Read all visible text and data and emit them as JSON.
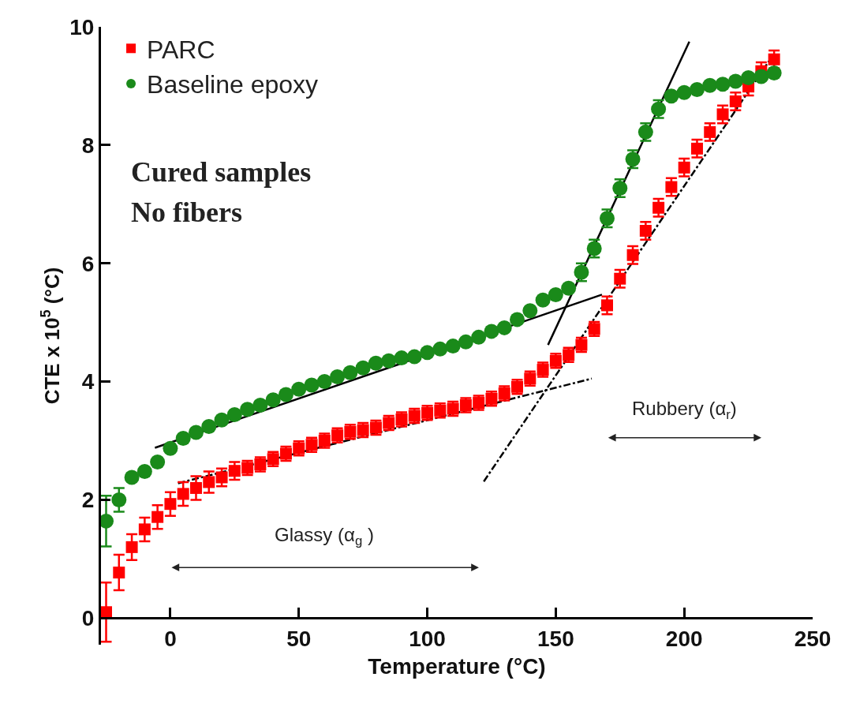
{
  "chart_data": {
    "type": "scatter",
    "xlabel": "Temperature (°C)",
    "ylabel": "CTE x 10$^{5}$ (°C)",
    "xlim": [
      -27,
      250
    ],
    "xticks": [
      0,
      50,
      100,
      150,
      200,
      250
    ],
    "ylim": [
      -0.45,
      10
    ],
    "yticks": [
      0,
      2,
      4,
      6,
      8,
      10
    ],
    "grid": false,
    "legend": "top left",
    "annotations": [
      "Cured samples",
      "No fibers",
      "Glassy (α$_{g}$ )",
      "Rubbery (α$_{r}$)"
    ],
    "series": [
      {
        "name": "PARC",
        "marker": "square",
        "color": "#ff0000",
        "x": [
          -25,
          -20,
          -15,
          -10,
          -5,
          0,
          5,
          10,
          15,
          20,
          25,
          30,
          35,
          40,
          45,
          50,
          55,
          60,
          65,
          70,
          75,
          80,
          85,
          90,
          95,
          100,
          105,
          110,
          115,
          120,
          125,
          130,
          135,
          140,
          145,
          150,
          155,
          160,
          165,
          170,
          175,
          180,
          185,
          190,
          195,
          200,
          205,
          210,
          215,
          220,
          225,
          230,
          235
        ],
        "values": [
          0.1,
          0.77,
          1.2,
          1.5,
          1.71,
          1.93,
          2.1,
          2.2,
          2.3,
          2.38,
          2.49,
          2.54,
          2.6,
          2.69,
          2.78,
          2.87,
          2.93,
          3.0,
          3.09,
          3.15,
          3.18,
          3.22,
          3.3,
          3.36,
          3.42,
          3.47,
          3.51,
          3.54,
          3.6,
          3.64,
          3.71,
          3.8,
          3.91,
          4.05,
          4.2,
          4.35,
          4.45,
          4.62,
          4.89,
          5.29,
          5.74,
          6.14,
          6.55,
          6.94,
          7.29,
          7.62,
          7.94,
          8.22,
          8.52,
          8.74,
          8.99,
          9.25,
          9.45
        ],
        "errors": [
          0.5,
          0.3,
          0.22,
          0.2,
          0.2,
          0.2,
          0.2,
          0.2,
          0.18,
          0.15,
          0.15,
          0.12,
          0.12,
          0.12,
          0.12,
          0.12,
          0.12,
          0.12,
          0.12,
          0.12,
          0.12,
          0.12,
          0.12,
          0.12,
          0.12,
          0.12,
          0.12,
          0.12,
          0.12,
          0.12,
          0.12,
          0.12,
          0.12,
          0.12,
          0.12,
          0.12,
          0.12,
          0.12,
          0.12,
          0.15,
          0.15,
          0.15,
          0.15,
          0.15,
          0.15,
          0.15,
          0.15,
          0.15,
          0.15,
          0.15,
          0.15,
          0.15,
          0.15
        ]
      },
      {
        "name": "Baseline epoxy",
        "marker": "circle",
        "color": "#1a8a1a",
        "x": [
          -25,
          -20,
          -15,
          -10,
          -5,
          0,
          5,
          10,
          15,
          20,
          25,
          30,
          35,
          40,
          45,
          50,
          55,
          60,
          65,
          70,
          75,
          80,
          85,
          90,
          95,
          100,
          105,
          110,
          115,
          120,
          125,
          130,
          135,
          140,
          145,
          150,
          155,
          160,
          165,
          170,
          175,
          180,
          185,
          190,
          195,
          200,
          205,
          210,
          215,
          220,
          225,
          230,
          235
        ],
        "values": [
          1.64,
          2.0,
          2.38,
          2.48,
          2.64,
          2.87,
          3.04,
          3.14,
          3.24,
          3.35,
          3.44,
          3.53,
          3.6,
          3.69,
          3.78,
          3.87,
          3.94,
          4.0,
          4.08,
          4.15,
          4.23,
          4.31,
          4.35,
          4.4,
          4.42,
          4.49,
          4.55,
          4.6,
          4.67,
          4.75,
          4.85,
          4.91,
          5.05,
          5.2,
          5.38,
          5.47,
          5.58,
          5.85,
          6.25,
          6.76,
          7.27,
          7.76,
          8.22,
          8.61,
          8.83,
          8.89,
          8.94,
          9.01,
          9.03,
          9.08,
          9.14,
          9.16,
          9.22
        ],
        "errors": [
          0.43,
          0.2,
          null,
          null,
          null,
          null,
          null,
          null,
          null,
          null,
          null,
          null,
          null,
          null,
          null,
          null,
          null,
          null,
          null,
          null,
          null,
          null,
          null,
          null,
          null,
          null,
          null,
          null,
          null,
          null,
          null,
          null,
          null,
          null,
          null,
          null,
          null,
          0.15,
          0.15,
          0.15,
          0.15,
          0.15,
          0.15,
          0.15,
          null,
          null,
          null,
          null,
          null,
          null,
          null,
          null,
          null
        ]
      },
      {
        "type": "line",
        "color": "#000000",
        "line_style": "solid",
        "marker": "none",
        "x": [
          -6,
          168
        ],
        "values": [
          2.88,
          5.47
        ]
      },
      {
        "type": "line",
        "color": "#000000",
        "line_style": "solid",
        "marker": "none",
        "x": [
          147,
          202
        ],
        "values": [
          4.62,
          9.75
        ]
      },
      {
        "type": "line",
        "color": "#000000",
        "line_style": "dashed",
        "marker": "none",
        "x": [
          3,
          164
        ],
        "values": [
          2.28,
          4.05
        ]
      },
      {
        "type": "line",
        "color": "#000000",
        "line_style": "dashed",
        "marker": "none",
        "x": [
          122,
          233
        ],
        "values": [
          2.31,
          9.42
        ]
      }
    ]
  }
}
